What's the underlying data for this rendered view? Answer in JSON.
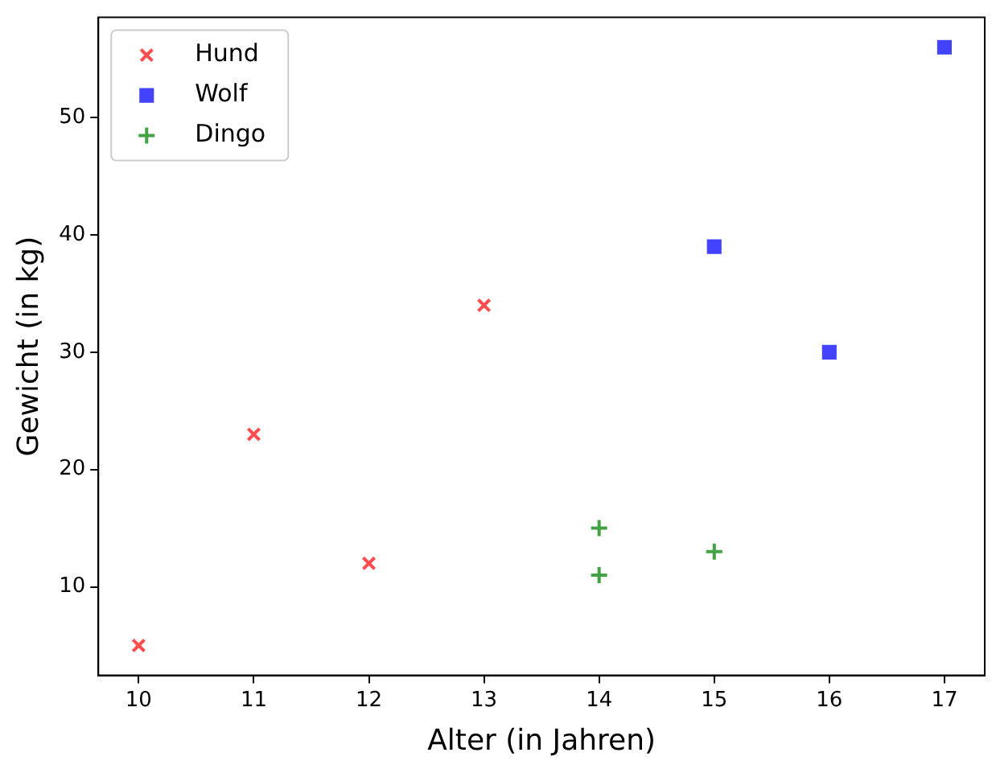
{
  "chart_data": {
    "type": "scatter",
    "xlabel": "Alter (in Jahren)",
    "ylabel": "Gewicht (in kg)",
    "xlim": [
      9.65,
      17.35
    ],
    "xticks": [
      10,
      11,
      12,
      13,
      14,
      15,
      16,
      17
    ],
    "ylim": [
      2.45,
      58.55
    ],
    "yticks": [
      10,
      20,
      30,
      40,
      50
    ],
    "grid": false,
    "legend": "top left",
    "series": [
      {
        "name": "Hund",
        "color": "#ff4c4c",
        "marker": "cross",
        "x": [
          10,
          11,
          12,
          13
        ],
        "values": [
          5,
          23,
          12,
          34
        ]
      },
      {
        "name": "Wolf",
        "color": "#4343ff",
        "marker": "square",
        "x": [
          15,
          16,
          17
        ],
        "values": [
          39,
          30,
          56
        ]
      },
      {
        "name": "Dingo",
        "color": "#43a343",
        "marker": "plus",
        "x": [
          14,
          14,
          15
        ],
        "values": [
          15,
          11,
          13
        ]
      }
    ]
  }
}
